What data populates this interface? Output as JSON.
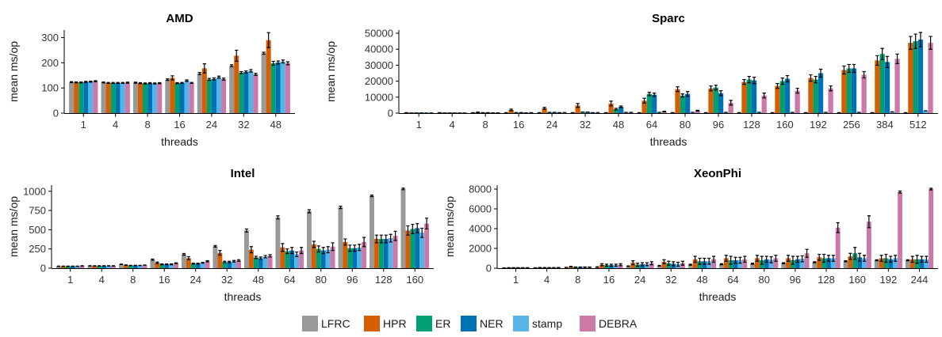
{
  "colors": {
    "LFRC": "#999999",
    "HPR": "#D55E00",
    "ER": "#009E73",
    "NER": "#0072B2",
    "stamp": "#56B4E9",
    "DEBRA": "#CC79A7"
  },
  "legend": [
    "LFRC",
    "HPR",
    "ER",
    "NER",
    "stamp",
    "DEBRA"
  ],
  "chart_data": [
    {
      "type": "bar",
      "title": "AMD",
      "xlabel": "threads",
      "ylabel": "mean ms/op",
      "ylim": [
        0,
        330
      ],
      "yticks": [
        0,
        100,
        200,
        300
      ],
      "ytick_labels": [
        "0",
        "100",
        "200",
        "300"
      ],
      "categories": [
        "1",
        "4",
        "8",
        "16",
        "24",
        "32",
        "48"
      ],
      "series": [
        {
          "name": "LFRC",
          "values": [
            123,
            122,
            121,
            133,
            157,
            188,
            238
          ]
        },
        {
          "name": "HPR",
          "values": [
            122,
            120,
            119,
            140,
            178,
            228,
            290
          ]
        },
        {
          "name": "ER",
          "values": [
            122,
            120,
            118,
            119,
            134,
            161,
            198
          ]
        },
        {
          "name": "NER",
          "values": [
            124,
            120,
            119,
            120,
            136,
            164,
            201
          ]
        },
        {
          "name": "stamp",
          "values": [
            125,
            120,
            118,
            129,
            143,
            168,
            205
          ]
        },
        {
          "name": "DEBRA",
          "values": [
            127,
            121,
            119,
            120,
            135,
            154,
            198
          ]
        }
      ],
      "errors": [
        [
          2,
          2,
          2,
          3,
          4,
          4,
          4
        ],
        [
          2,
          2,
          2,
          8,
          18,
          22,
          30
        ],
        [
          2,
          2,
          2,
          2,
          4,
          4,
          8
        ],
        [
          2,
          2,
          2,
          2,
          4,
          4,
          6
        ],
        [
          2,
          2,
          2,
          3,
          4,
          5,
          6
        ],
        [
          2,
          2,
          2,
          2,
          4,
          4,
          6
        ]
      ]
    },
    {
      "type": "bar",
      "title": "Sparc",
      "xlabel": "threads",
      "ylabel": "mean ms/op",
      "ylim": [
        0,
        52000
      ],
      "yticks": [
        0,
        10000,
        20000,
        30000,
        40000,
        50000
      ],
      "ytick_labels": [
        "0",
        "10000",
        "20000",
        "30000",
        "40000",
        "50000"
      ],
      "categories": [
        "1",
        "4",
        "8",
        "16",
        "24",
        "32",
        "48",
        "64",
        "80",
        "96",
        "128",
        "160",
        "192",
        "256",
        "384",
        "512"
      ],
      "series": [
        {
          "name": "LFRC",
          "values": [
            300,
            300,
            300,
            300,
            300,
            300,
            300,
            300,
            300,
            300,
            300,
            300,
            300,
            300,
            300,
            300
          ]
        },
        {
          "name": "HPR",
          "values": [
            100,
            100,
            500,
            2000,
            3000,
            4800,
            6000,
            7800,
            15000,
            15500,
            19500,
            17000,
            22000,
            27000,
            33000,
            44000
          ]
        },
        {
          "name": "ER",
          "values": [
            100,
            100,
            300,
            400,
            500,
            700,
            2500,
            12000,
            11000,
            16000,
            21000,
            20000,
            21000,
            28000,
            37000,
            45000
          ]
        },
        {
          "name": "NER",
          "values": [
            100,
            100,
            300,
            400,
            500,
            700,
            4000,
            11500,
            12000,
            12500,
            20500,
            21500,
            25000,
            28000,
            32000,
            46000
          ]
        },
        {
          "name": "stamp",
          "values": [
            100,
            100,
            200,
            200,
            300,
            300,
            500,
            500,
            500,
            500,
            500,
            500,
            500,
            500,
            800,
            1500
          ]
        },
        {
          "name": "DEBRA",
          "values": [
            100,
            100,
            200,
            300,
            400,
            400,
            500,
            1000,
            1500,
            6500,
            11000,
            14000,
            15500,
            24000,
            34000,
            44000
          ]
        }
      ],
      "errors": [
        [
          0,
          0,
          0,
          0,
          0,
          0,
          0,
          0,
          0,
          0,
          0,
          0,
          0,
          0,
          0,
          0
        ],
        [
          0,
          0,
          200,
          500,
          600,
          1200,
          1500,
          1500,
          1500,
          1500,
          1500,
          1500,
          2000,
          2500,
          3000,
          4000
        ],
        [
          0,
          0,
          0,
          0,
          0,
          0,
          500,
          1000,
          1000,
          1500,
          2000,
          2000,
          2000,
          2500,
          3500,
          4500
        ],
        [
          0,
          0,
          0,
          0,
          0,
          0,
          500,
          1000,
          1500,
          1500,
          2000,
          2000,
          2500,
          2500,
          3500,
          4500
        ],
        [
          0,
          0,
          0,
          0,
          0,
          0,
          0,
          0,
          0,
          0,
          0,
          0,
          0,
          0,
          0,
          0
        ],
        [
          0,
          0,
          0,
          0,
          0,
          0,
          0,
          200,
          300,
          1500,
          1500,
          1500,
          1500,
          2000,
          3000,
          4000
        ]
      ]
    },
    {
      "type": "bar",
      "title": "Intel",
      "xlabel": "threads",
      "ylabel": "mean ms/op",
      "ylim": [
        0,
        1080
      ],
      "yticks": [
        0,
        250,
        500,
        750,
        1000
      ],
      "ytick_labels": [
        "0",
        "250",
        "500",
        "750",
        "1000"
      ],
      "categories": [
        "1",
        "4",
        "8",
        "16",
        "24",
        "32",
        "48",
        "64",
        "80",
        "96",
        "128",
        "160"
      ],
      "series": [
        {
          "name": "LFRC",
          "values": [
            25,
            30,
            50,
            110,
            180,
            285,
            490,
            660,
            740,
            790,
            940,
            1030
          ]
        },
        {
          "name": "HPR",
          "values": [
            25,
            30,
            40,
            70,
            130,
            200,
            240,
            270,
            310,
            340,
            380,
            490
          ]
        },
        {
          "name": "ER",
          "values": [
            25,
            30,
            35,
            50,
            60,
            80,
            140,
            220,
            250,
            260,
            380,
            510
          ]
        },
        {
          "name": "NER",
          "values": [
            25,
            30,
            35,
            50,
            60,
            80,
            130,
            230,
            230,
            260,
            380,
            520
          ]
        },
        {
          "name": "stamp",
          "values": [
            25,
            30,
            35,
            50,
            70,
            90,
            150,
            180,
            240,
            270,
            390,
            460
          ]
        },
        {
          "name": "DEBRA",
          "values": [
            30,
            30,
            40,
            65,
            90,
            100,
            160,
            230,
            280,
            340,
            420,
            580
          ]
        }
      ],
      "errors": [
        [
          2,
          2,
          3,
          8,
          10,
          10,
          20,
          20,
          20,
          15,
          10,
          10
        ],
        [
          2,
          2,
          3,
          10,
          20,
          30,
          40,
          50,
          40,
          40,
          50,
          60
        ],
        [
          2,
          2,
          2,
          5,
          5,
          10,
          15,
          30,
          40,
          40,
          50,
          60
        ],
        [
          2,
          2,
          2,
          5,
          5,
          10,
          15,
          40,
          40,
          40,
          50,
          60
        ],
        [
          2,
          2,
          2,
          5,
          5,
          10,
          15,
          30,
          40,
          40,
          50,
          60
        ],
        [
          2,
          2,
          2,
          5,
          8,
          10,
          15,
          40,
          50,
          60,
          60,
          70
        ]
      ]
    },
    {
      "type": "bar",
      "title": "XeonPhi",
      "xlabel": "threads",
      "ylabel": "mean ms/op",
      "ylim": [
        0,
        8400
      ],
      "yticks": [
        0,
        2000,
        4000,
        6000,
        8000
      ],
      "ytick_labels": [
        "0",
        "2000",
        "4000",
        "6000",
        "8000"
      ],
      "categories": [
        "1",
        "4",
        "8",
        "16",
        "24",
        "32",
        "48",
        "64",
        "80",
        "96",
        "128",
        "160",
        "192",
        "244"
      ],
      "series": [
        {
          "name": "LFRC",
          "values": [
            30,
            40,
            70,
            120,
            200,
            250,
            350,
            400,
            450,
            500,
            600,
            700,
            800,
            800
          ]
        },
        {
          "name": "HPR",
          "values": [
            40,
            60,
            160,
            350,
            550,
            650,
            900,
            1000,
            1000,
            1000,
            1100,
            1200,
            1000,
            900
          ]
        },
        {
          "name": "ER",
          "values": [
            40,
            50,
            100,
            300,
            350,
            500,
            700,
            800,
            800,
            800,
            1000,
            1500,
            1000,
            900
          ]
        },
        {
          "name": "NER",
          "values": [
            40,
            50,
            100,
            300,
            400,
            450,
            700,
            800,
            900,
            900,
            1000,
            1100,
            900,
            900
          ]
        },
        {
          "name": "stamp",
          "values": [
            40,
            50,
            100,
            300,
            400,
            400,
            700,
            800,
            850,
            950,
            1000,
            1000,
            1000,
            900
          ]
        },
        {
          "name": "DEBRA",
          "values": [
            40,
            60,
            100,
            350,
            500,
            500,
            900,
            900,
            1000,
            1500,
            4100,
            4700,
            7700,
            8000
          ]
        }
      ],
      "errors": [
        [
          5,
          5,
          10,
          20,
          30,
          30,
          50,
          50,
          50,
          50,
          50,
          50,
          50,
          50
        ],
        [
          10,
          10,
          30,
          100,
          200,
          200,
          300,
          300,
          300,
          300,
          300,
          300,
          300,
          300
        ],
        [
          10,
          10,
          20,
          100,
          150,
          200,
          300,
          400,
          400,
          400,
          400,
          600,
          400,
          400
        ],
        [
          10,
          10,
          20,
          100,
          150,
          200,
          300,
          300,
          300,
          300,
          300,
          400,
          300,
          300
        ],
        [
          10,
          10,
          20,
          100,
          150,
          200,
          300,
          300,
          300,
          300,
          300,
          300,
          300,
          300
        ],
        [
          10,
          10,
          20,
          100,
          150,
          200,
          300,
          300,
          300,
          400,
          500,
          600,
          100,
          80
        ]
      ]
    }
  ]
}
